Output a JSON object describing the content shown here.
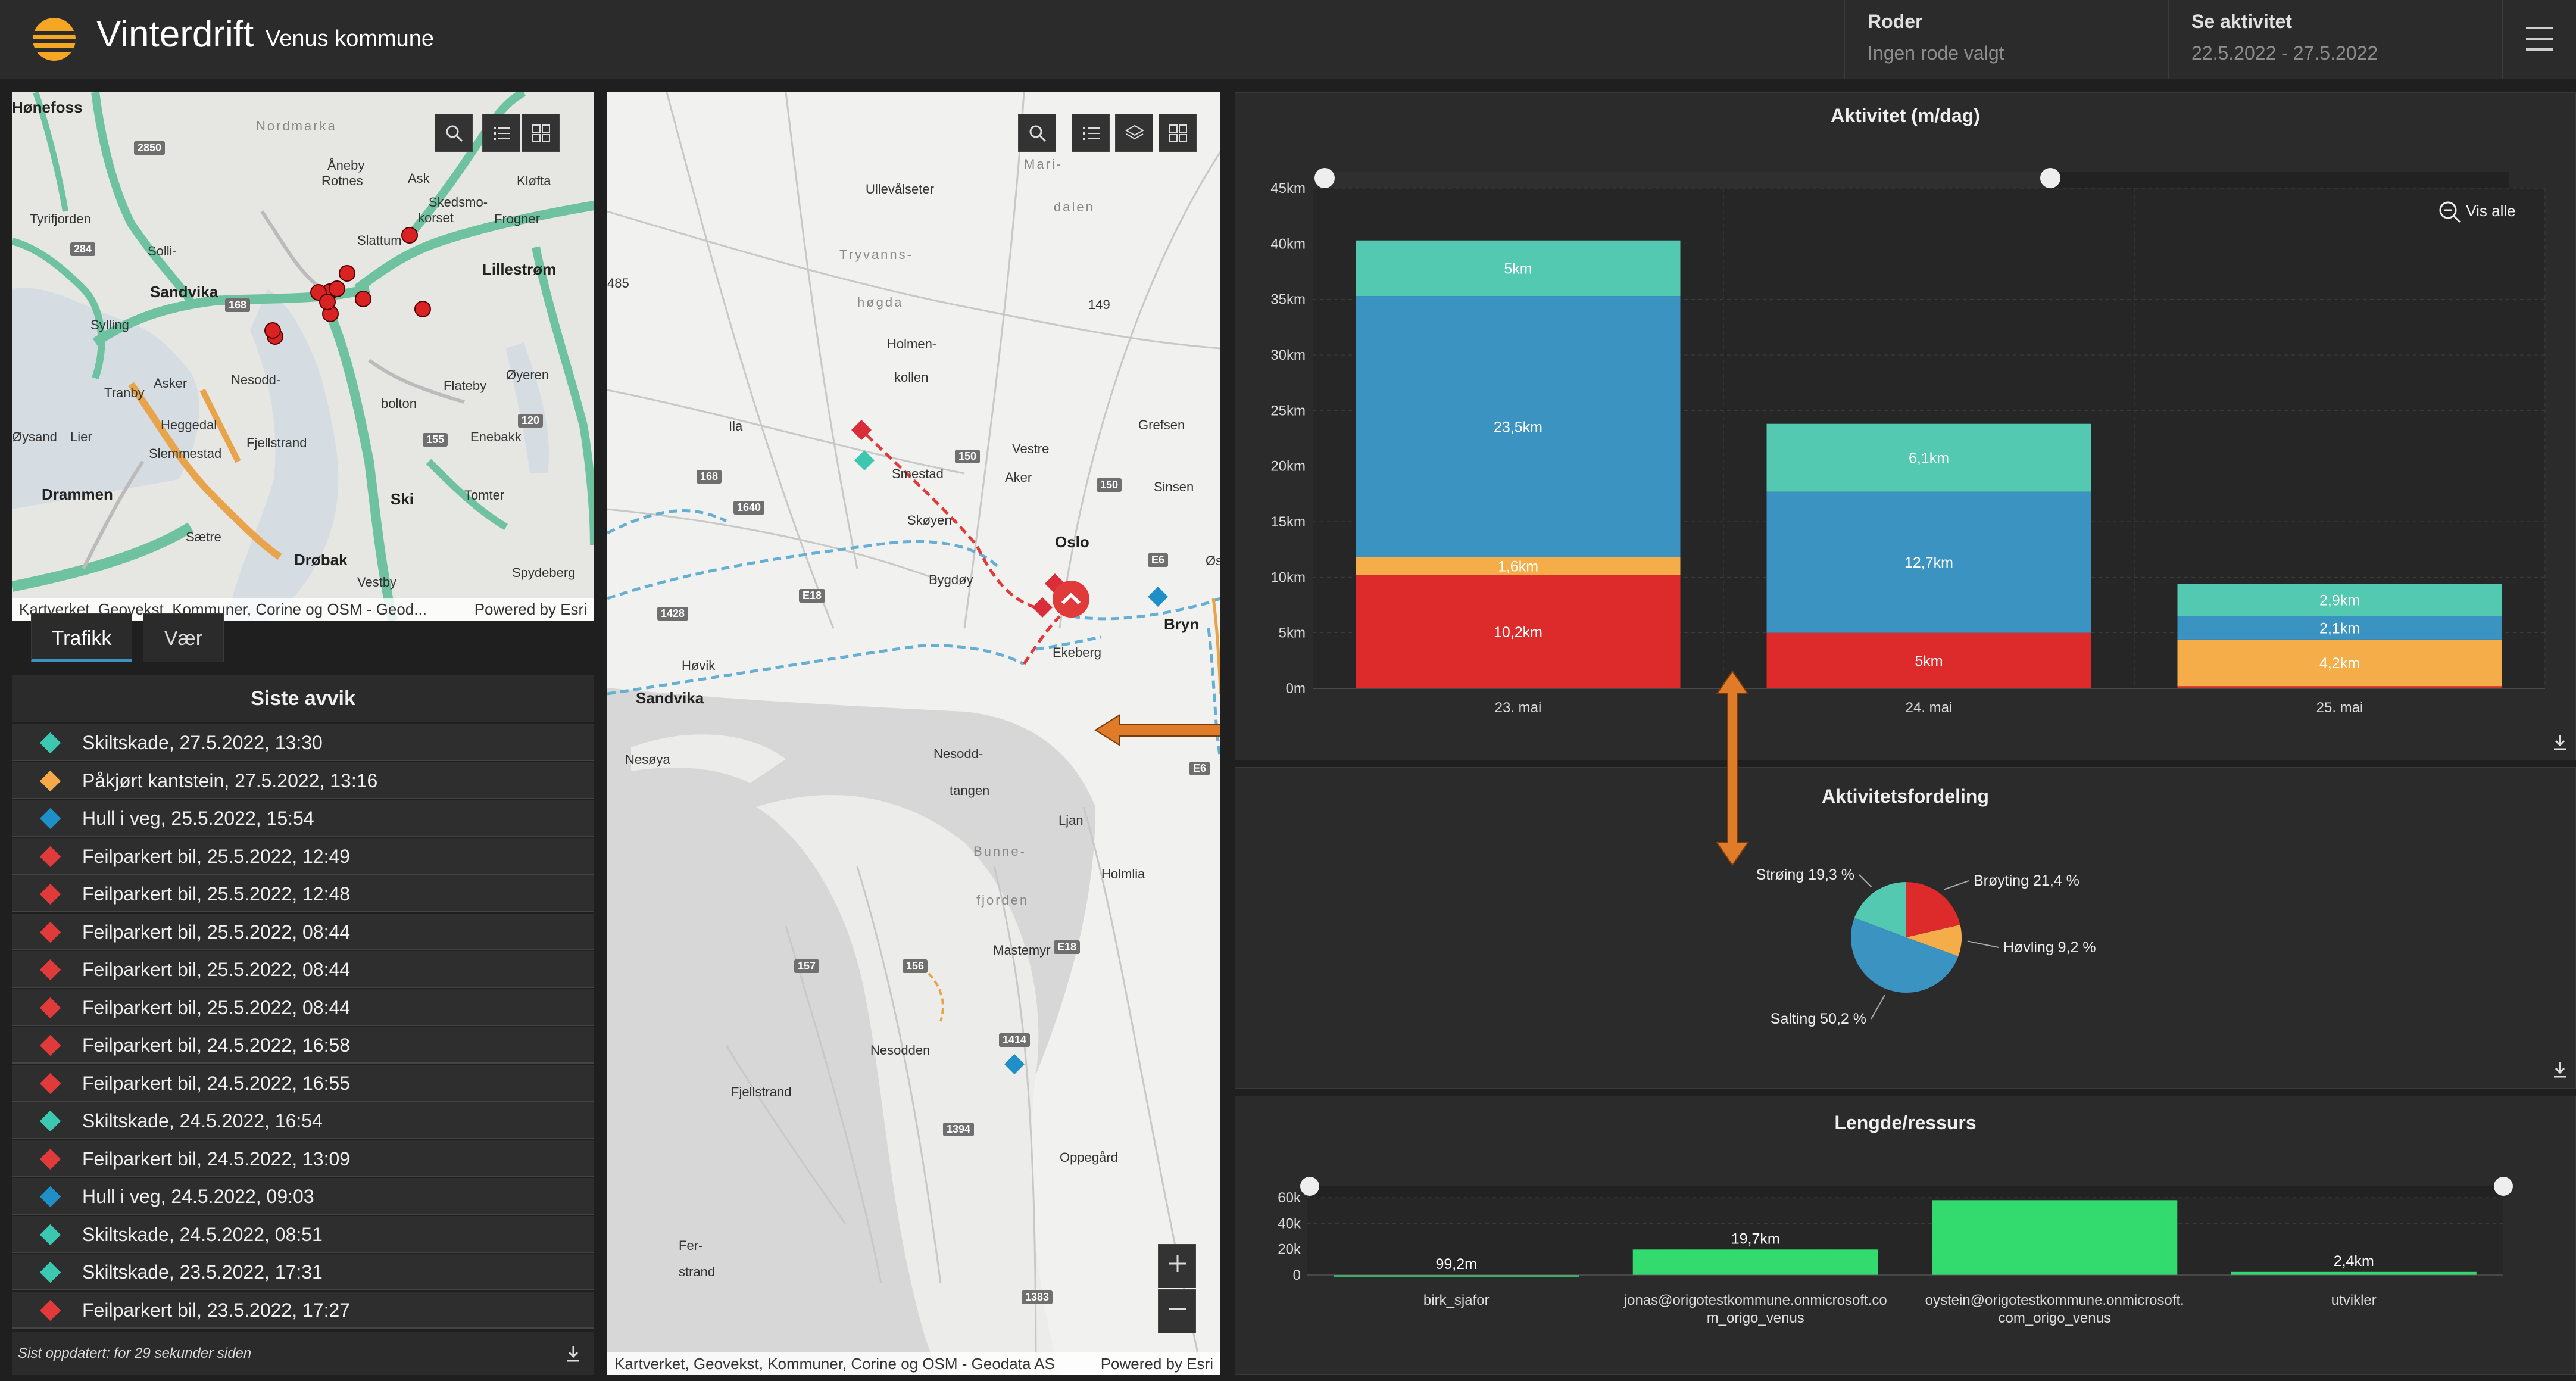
{
  "header": {
    "title": "Vinterdrift",
    "subtitle": "Venus kommune",
    "roder_label": "Roder",
    "roder_value": "Ingen rode valgt",
    "activity_label": "Se aktivitet",
    "activity_value": "22.5.2022 - 27.5.2022"
  },
  "overview_map": {
    "attribution": "Kartverket, Geovekst, Kommuner, Corine og OSM - Geod...",
    "powered_by": "Powered by Esri",
    "labels": [
      "Hønefoss",
      "Nordmarka",
      "Åneby",
      "Rotnes",
      "Ask",
      "Skedsmo-",
      "korset",
      "Frogner",
      "Slattum",
      "Kløfta",
      "Lillestrøm",
      "Tyrifjorden",
      "Solli-",
      "Sandvika",
      "Sylling",
      "Tranby",
      "Asker",
      "Nesodd-",
      "Flateby",
      "Øyeren",
      "Heggedal",
      "Fjellstrand",
      "Enebakk",
      "Slemmestad",
      "Drammen",
      "Ski",
      "Sætre",
      "Tomter",
      "Drøbak",
      "Vestby",
      "Spydeberg",
      "Lier",
      "Øysand",
      "bolton"
    ],
    "shields": [
      "2850",
      "284",
      "168",
      "155",
      "120"
    ]
  },
  "tabs": [
    "Trafikk",
    "Vær"
  ],
  "deviations": {
    "title": "Siste avvik",
    "items": [
      {
        "text": "Skiltskade, 27.5.2022, 13:30",
        "color": "#3cc8b0"
      },
      {
        "text": "Påkjørt kantstein, 27.5.2022, 13:16",
        "color": "#f5a94a"
      },
      {
        "text": "Hull i veg, 25.5.2022, 15:54",
        "color": "#1f8fc8"
      },
      {
        "text": "Feilparkert bil, 25.5.2022, 12:49",
        "color": "#e03a3a"
      },
      {
        "text": "Feilparkert bil, 25.5.2022, 12:48",
        "color": "#e03a3a"
      },
      {
        "text": "Feilparkert bil, 25.5.2022, 08:44",
        "color": "#e03a3a"
      },
      {
        "text": "Feilparkert bil, 25.5.2022, 08:44",
        "color": "#e03a3a"
      },
      {
        "text": "Feilparkert bil, 25.5.2022, 08:44",
        "color": "#e03a3a"
      },
      {
        "text": "Feilparkert bil, 24.5.2022, 16:58",
        "color": "#e03a3a"
      },
      {
        "text": "Feilparkert bil, 24.5.2022, 16:55",
        "color": "#e03a3a"
      },
      {
        "text": "Skiltskade, 24.5.2022, 16:54",
        "color": "#3cc8b0"
      },
      {
        "text": "Feilparkert bil, 24.5.2022, 13:09",
        "color": "#e03a3a"
      },
      {
        "text": "Hull i veg, 24.5.2022, 09:03",
        "color": "#1f8fc8"
      },
      {
        "text": "Skiltskade, 24.5.2022, 08:51",
        "color": "#3cc8b0"
      },
      {
        "text": "Skiltskade, 23.5.2022, 17:31",
        "color": "#3cc8b0"
      },
      {
        "text": "Feilparkert bil, 23.5.2022, 17:27",
        "color": "#e03a3a"
      }
    ],
    "footer": "Sist oppdatert: for 29 sekunder siden"
  },
  "detail_map": {
    "attribution": "Kartverket, Geovekst, Kommuner, Corine og OSM - Geodata AS",
    "powered_by": "Powered by Esri",
    "labels": [
      "Mari-",
      "dalen",
      "Ullevålseter",
      "Tryvanns-",
      "høgda",
      "Holmen-",
      "kollen",
      "Vestre",
      "Aker",
      "Grefsen",
      "Sinsen",
      "Skøyen",
      "Oslo",
      "Bygdøy",
      "Bryn",
      "Ekeberg",
      "Høvik",
      "Sandvika",
      "Nesøya",
      "Nesodd-",
      "tangen",
      "Bunne-",
      "fjorden",
      "Ljan",
      "Holmlia",
      "Mastemyr",
      "Nesodden",
      "Fjellstrand",
      "Oppegård",
      "Fer-",
      "strand",
      "Smestad",
      "Ila",
      "485",
      "149",
      "Øs"
    ],
    "shields": [
      "150",
      "168",
      "1640",
      "150",
      "E6",
      "E18",
      "1428",
      "E6",
      "156",
      "157",
      "1414",
      "1394",
      "E18",
      "1383"
    ]
  },
  "activity_chart": {
    "title": "Aktivitet (m/dag)",
    "zoom_label": "Vis alle"
  },
  "distribution_chart": {
    "title": "Aktivitetsfordeling"
  },
  "resource_chart": {
    "title": "Lengde/ressurs"
  },
  "colors": {
    "broyting": "#dd2b2b",
    "hovling": "#f5ad4a",
    "salting": "#3a93c1",
    "stroing": "#52c9b0",
    "resource": "#33db6f"
  },
  "chart_data": [
    {
      "type": "bar",
      "stacked": true,
      "title": "Aktivitet (m/dag)",
      "categories": [
        "23. mai",
        "24. mai",
        "25. mai"
      ],
      "y_ticks": [
        "0m",
        "5km",
        "10km",
        "15km",
        "20km",
        "25km",
        "30km",
        "35km",
        "40km",
        "45km"
      ],
      "ylim": [
        0,
        45000
      ],
      "series": [
        {
          "color": "#dd2b2b",
          "values": [
            10200,
            5000,
            200
          ],
          "labels": [
            "10,2km",
            "5km",
            ""
          ]
        },
        {
          "color": "#f5ad4a",
          "values": [
            1600,
            0,
            4200
          ],
          "labels": [
            "1,6km",
            "",
            "4,2km"
          ]
        },
        {
          "color": "#3a93c1",
          "values": [
            23500,
            12700,
            2100
          ],
          "labels": [
            "23,5km",
            "12,7km",
            "2,1km"
          ]
        },
        {
          "color": "#52c9b0",
          "values": [
            5000,
            6100,
            2900
          ],
          "labels": [
            "5km",
            "6,1km",
            "2,9km"
          ]
        }
      ]
    },
    {
      "type": "pie",
      "title": "Aktivitetsfordeling",
      "slices": [
        {
          "label": "Brøyting 21,4 %",
          "value": 21.4,
          "color": "#dd2b2b"
        },
        {
          "label": "Høvling 9,2 %",
          "value": 9.2,
          "color": "#f5ad4a"
        },
        {
          "label": "Salting 50,2 %",
          "value": 50.2,
          "color": "#3a93c1"
        },
        {
          "label": "Strøing 19,3 %",
          "value": 19.3,
          "color": "#52c9b0"
        }
      ]
    },
    {
      "type": "bar",
      "title": "Lengde/ressurs",
      "categories": [
        "birk_sjafor",
        "jonas@origotestkommune.onmicrosoft.com_origo_venus",
        "oystein@origotestkommune.onmicrosoft.com_origo_venus",
        "utvikler"
      ],
      "category_lines": [
        [
          "birk_sjafor"
        ],
        [
          "jonas@origotestkommune.onmicrosoft.co",
          "m_origo_venus"
        ],
        [
          "oystein@origotestkommune.onmicrosoft.",
          "com_origo_venus"
        ],
        [
          "utvikler"
        ]
      ],
      "values": [
        99.2,
        19700,
        58000,
        2400
      ],
      "value_labels": [
        "99,2m",
        "19,7km",
        "",
        "2,4km"
      ],
      "y_ticks": [
        "0",
        "20k",
        "40k",
        "60k"
      ],
      "ylim": [
        0,
        60000
      ],
      "color": "#33db6f"
    }
  ]
}
